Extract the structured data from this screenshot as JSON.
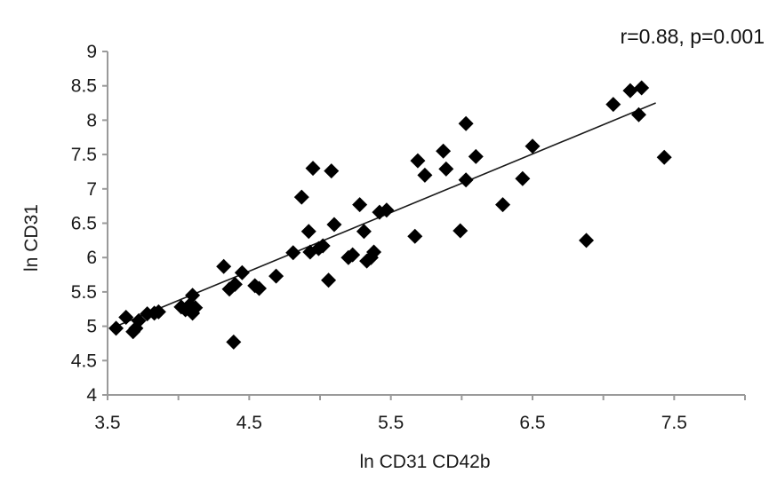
{
  "chart_data": {
    "type": "scatter",
    "title": "",
    "annotation": "r=0.88, p=0.001",
    "xlabel": "ln CD31 CD42b",
    "ylabel": "ln CD31",
    "xlim": [
      3.5,
      8
    ],
    "ylim": [
      4,
      9
    ],
    "x_ticks": [
      "3.5",
      "4.5",
      "5.5",
      "6.5",
      "7.5"
    ],
    "y_ticks": [
      "4",
      "4.5",
      "5",
      "5.5",
      "6",
      "6.5",
      "7",
      "7.5",
      "8",
      "8.5",
      "9"
    ],
    "grid": false,
    "legend": "none",
    "marker": "diamond",
    "marker_color": "#000000",
    "axis_color": "#9a9a9a",
    "trendline": {
      "x": [
        3.56,
        7.37
      ],
      "y": [
        5.0,
        8.25
      ]
    },
    "points": [
      {
        "x": 3.56,
        "y": 4.97
      },
      {
        "x": 3.63,
        "y": 5.13
      },
      {
        "x": 3.68,
        "y": 4.92
      },
      {
        "x": 3.7,
        "y": 4.97
      },
      {
        "x": 3.72,
        "y": 5.08
      },
      {
        "x": 3.78,
        "y": 5.18
      },
      {
        "x": 3.83,
        "y": 5.19
      },
      {
        "x": 3.86,
        "y": 5.21
      },
      {
        "x": 4.02,
        "y": 5.28
      },
      {
        "x": 4.05,
        "y": 5.24
      },
      {
        "x": 4.08,
        "y": 5.31
      },
      {
        "x": 4.1,
        "y": 5.45
      },
      {
        "x": 4.1,
        "y": 5.19
      },
      {
        "x": 4.12,
        "y": 5.27
      },
      {
        "x": 4.32,
        "y": 5.87
      },
      {
        "x": 4.36,
        "y": 5.54
      },
      {
        "x": 4.4,
        "y": 5.61
      },
      {
        "x": 4.39,
        "y": 4.77
      },
      {
        "x": 4.45,
        "y": 5.78
      },
      {
        "x": 4.54,
        "y": 5.59
      },
      {
        "x": 4.57,
        "y": 5.55
      },
      {
        "x": 4.69,
        "y": 5.73
      },
      {
        "x": 4.81,
        "y": 6.07
      },
      {
        "x": 4.87,
        "y": 6.88
      },
      {
        "x": 4.92,
        "y": 6.38
      },
      {
        "x": 4.93,
        "y": 6.08
      },
      {
        "x": 4.95,
        "y": 7.3
      },
      {
        "x": 4.99,
        "y": 6.13
      },
      {
        "x": 5.02,
        "y": 6.17
      },
      {
        "x": 5.06,
        "y": 5.67
      },
      {
        "x": 5.08,
        "y": 7.26
      },
      {
        "x": 5.1,
        "y": 6.48
      },
      {
        "x": 5.2,
        "y": 6.0
      },
      {
        "x": 5.23,
        "y": 6.04
      },
      {
        "x": 5.28,
        "y": 6.77
      },
      {
        "x": 5.31,
        "y": 6.38
      },
      {
        "x": 5.33,
        "y": 5.95
      },
      {
        "x": 5.36,
        "y": 6.0
      },
      {
        "x": 5.38,
        "y": 6.08
      },
      {
        "x": 5.42,
        "y": 6.66
      },
      {
        "x": 5.47,
        "y": 6.69
      },
      {
        "x": 5.67,
        "y": 6.31
      },
      {
        "x": 5.69,
        "y": 7.41
      },
      {
        "x": 5.74,
        "y": 7.2
      },
      {
        "x": 5.87,
        "y": 7.55
      },
      {
        "x": 5.89,
        "y": 7.29
      },
      {
        "x": 5.99,
        "y": 6.39
      },
      {
        "x": 6.03,
        "y": 7.95
      },
      {
        "x": 6.03,
        "y": 7.13
      },
      {
        "x": 6.1,
        "y": 7.47
      },
      {
        "x": 6.29,
        "y": 6.77
      },
      {
        "x": 6.43,
        "y": 7.15
      },
      {
        "x": 6.5,
        "y": 7.62
      },
      {
        "x": 6.88,
        "y": 6.25
      },
      {
        "x": 7.07,
        "y": 8.23
      },
      {
        "x": 7.19,
        "y": 8.43
      },
      {
        "x": 7.25,
        "y": 8.08
      },
      {
        "x": 7.27,
        "y": 8.47
      },
      {
        "x": 7.43,
        "y": 7.46
      }
    ]
  }
}
